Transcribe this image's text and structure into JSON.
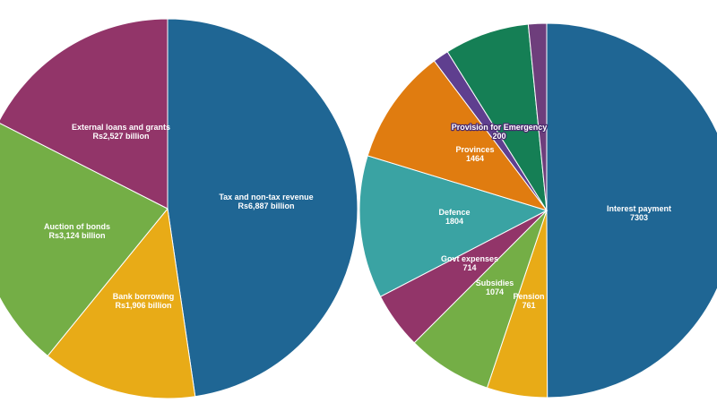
{
  "chart_data": [
    {
      "type": "pie",
      "slices": [
        {
          "name": "Tax and non-tax revenue",
          "value": 6887,
          "display": "Rs6,887 billion",
          "color": "#1f6694"
        },
        {
          "name": "Bank borrowing",
          "value": 1906,
          "display": "Rs1,906 billion",
          "color": "#e8ab17"
        },
        {
          "name": "Auction of bonds",
          "value": 3124,
          "display": "Rs3,124 billion",
          "color": "#74ae46"
        },
        {
          "name": "External loans and grants",
          "value": 2527,
          "display": "Rs2,527 billion",
          "color": "#923569"
        }
      ]
    },
    {
      "type": "pie",
      "slices": [
        {
          "name": "Interest payment",
          "value": 7303,
          "display": "7303",
          "color": "#1f6694"
        },
        {
          "name": "Pension",
          "value": 761,
          "display": "761",
          "color": "#e8ab17"
        },
        {
          "name": "Subsidies",
          "value": 1074,
          "display": "1074",
          "color": "#74ae46"
        },
        {
          "name": "Govt expenses",
          "value": 714,
          "display": "714",
          "color": "#923569"
        },
        {
          "name": "Defence",
          "value": 1804,
          "display": "1804",
          "color": "#3aa3a3"
        },
        {
          "name": "Provinces",
          "value": 1464,
          "display": "1464",
          "color": "#e07c10"
        },
        {
          "name": "Provision for Emergency",
          "value": 200,
          "display": "200",
          "color": "#5f3f8f"
        },
        {
          "name": "",
          "value": 1070,
          "display": "",
          "color": "#157f55"
        },
        {
          "name": "",
          "value": 230,
          "display": "",
          "color": "#6e3e7c"
        }
      ]
    }
  ]
}
